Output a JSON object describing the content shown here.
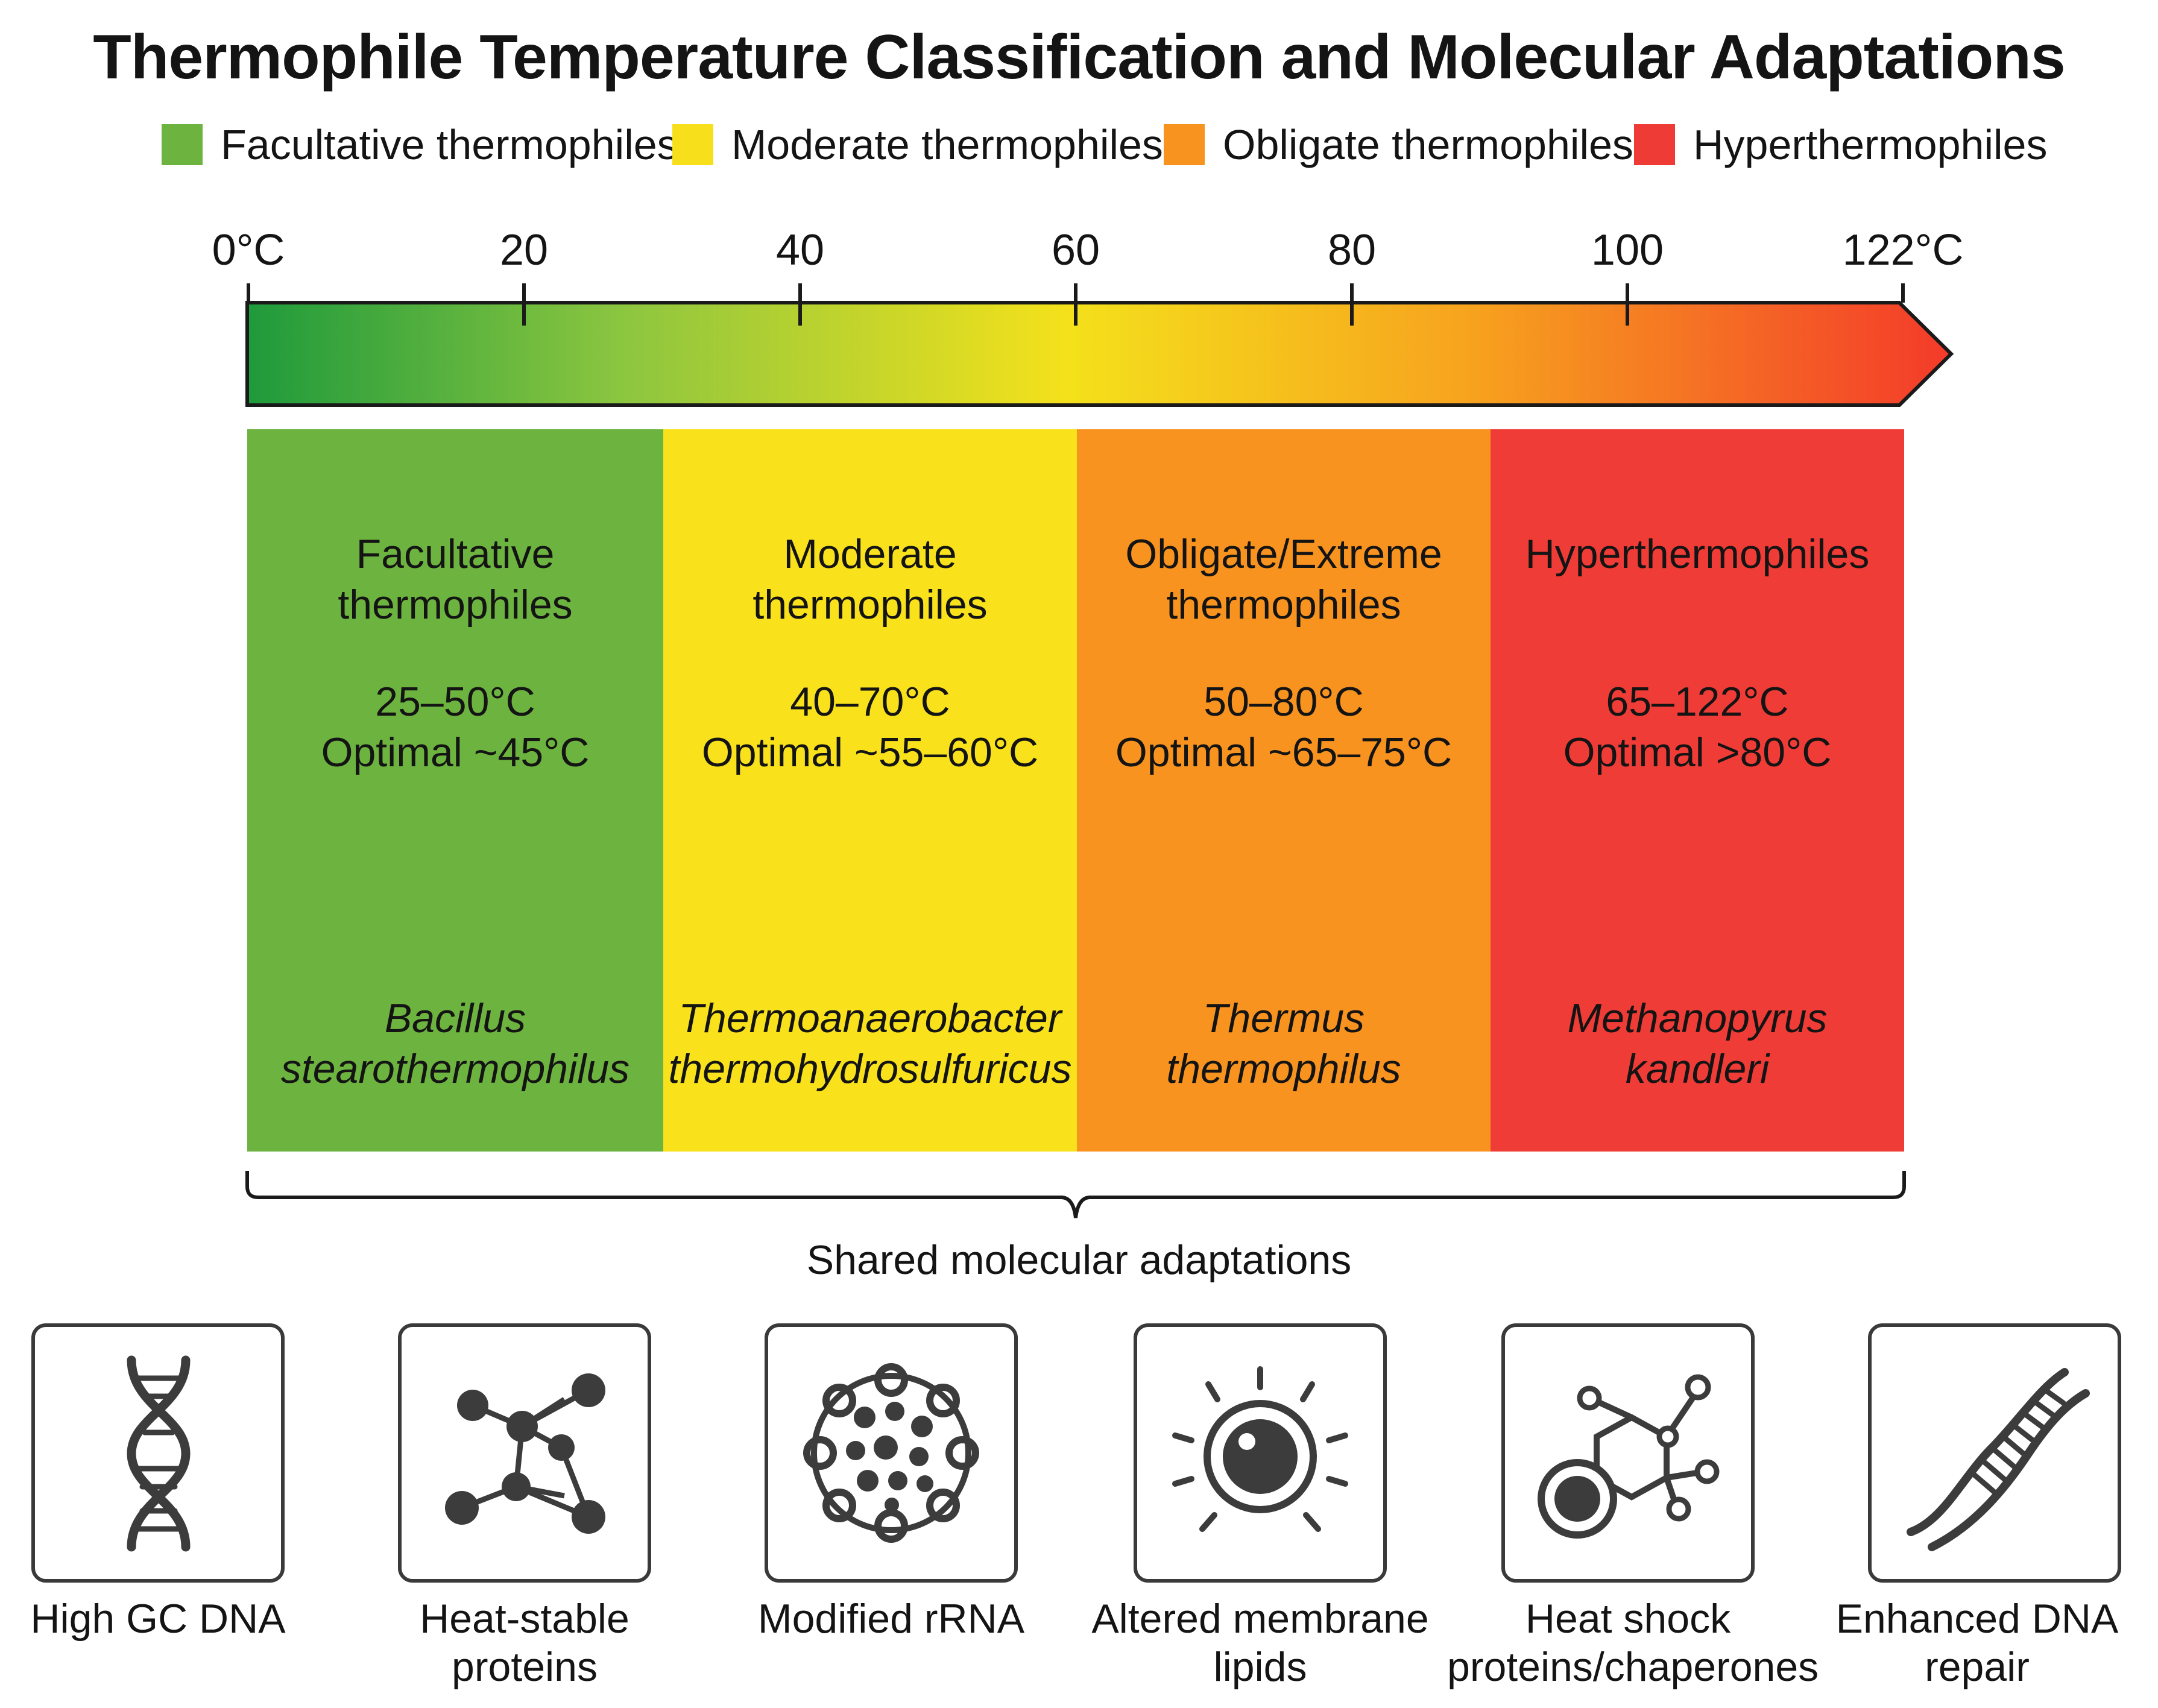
{
  "title": "Thermophile Temperature Classification and Molecular Adaptations",
  "legend": [
    {
      "label": "Facultative thermophiles",
      "color": "#6db33f"
    },
    {
      "label": "Moderate thermophiles",
      "color": "#f7e01b"
    },
    {
      "label": "Obligate thermophiles",
      "color": "#f7931e"
    },
    {
      "label": "Hyperthermophiles",
      "color": "#ef3b36"
    }
  ],
  "scale": {
    "ticks": [
      "0°C",
      "20",
      "40",
      "60",
      "80",
      "100",
      "122°C"
    ],
    "gradient_colors": [
      "#1e9a3c",
      "#8cc63f",
      "#f4e11b",
      "#f7a21e",
      "#f33a2a"
    ]
  },
  "categories": [
    {
      "name_line1": "Facultative",
      "name_line2": "thermophiles",
      "range": "25–50°C",
      "optimal": "Optimal ~45°C",
      "example_line1": "Bacillus",
      "example_line2": "stearothermophilus",
      "color": "#6db33f"
    },
    {
      "name_line1": "Moderate",
      "name_line2": "thermophiles",
      "range": "40–70°C",
      "optimal": "Optimal ~55–60°C",
      "example_line1": "Thermoanaerobacter",
      "example_line2": "thermohydrosulfuricus",
      "color": "#f9e21b"
    },
    {
      "name_line1": "Obligate/Extreme",
      "name_line2": "thermophiles",
      "range": "50–80°C",
      "optimal": "Optimal ~65–75°C",
      "example_line1": "Thermus",
      "example_line2": "thermophilus",
      "color": "#f8931f"
    },
    {
      "name_line1": "Hyperthermophiles",
      "name_line2": "",
      "range": "65–122°C",
      "optimal": "Optimal >80°C",
      "example_line1": "Methanopyrus",
      "example_line2": "kandleri",
      "color": "#f03c36"
    }
  ],
  "brace_label": "Shared molecular adaptations",
  "adaptations": [
    {
      "line1": "High GC DNA",
      "line2": "",
      "icon": "dna-double-helix-icon"
    },
    {
      "line1": "Heat-stable",
      "line2": "proteins",
      "icon": "protein-network-icon"
    },
    {
      "line1": "Modified rRNA",
      "line2": "",
      "icon": "ribosome-cluster-icon"
    },
    {
      "line1": "Altered membrane",
      "line2": "lipids",
      "icon": "membrane-lipid-sun-icon"
    },
    {
      "line1": "Heat shock",
      "line2": "proteins/chaperones",
      "icon": "chaperone-molecule-icon"
    },
    {
      "line1": "Enhanced DNA",
      "line2": "repair",
      "icon": "dna-repair-icon"
    }
  ]
}
